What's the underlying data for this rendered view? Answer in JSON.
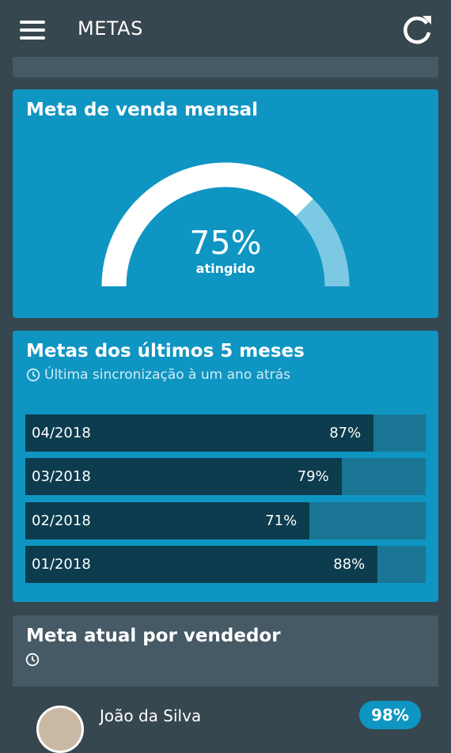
{
  "appbar": {
    "title": "METAS",
    "menu_icon": "hamburger-menu-icon",
    "refresh_icon": "refresh-icon"
  },
  "monthly_goal": {
    "title": "Meta de venda mensal",
    "percent": 75,
    "value_label": "75%",
    "caption": "atingido",
    "colors": {
      "arc_fill": "#ffffff",
      "arc_track": "#7cc9e3",
      "card": "#0f95c2"
    }
  },
  "history": {
    "title": "Metas dos últimos 5 meses",
    "sync_icon": "clock-icon",
    "sync_text": "Última sincronização à um ano atrás",
    "items": [
      {
        "month": "04/2018",
        "percent": 87,
        "label": "87%"
      },
      {
        "month": "03/2018",
        "percent": 79,
        "label": "79%"
      },
      {
        "month": "02/2018",
        "percent": 71,
        "label": "71%"
      },
      {
        "month": "01/2018",
        "percent": 88,
        "label": "88%"
      }
    ],
    "colors": {
      "fill": "#0c3c4e",
      "track": "#1a7595"
    }
  },
  "seller_goal": {
    "title": "Meta atual por vendedor",
    "clock_icon": "clock-icon",
    "first_seller": {
      "name": "João da Silva",
      "badge": "98%"
    }
  }
}
